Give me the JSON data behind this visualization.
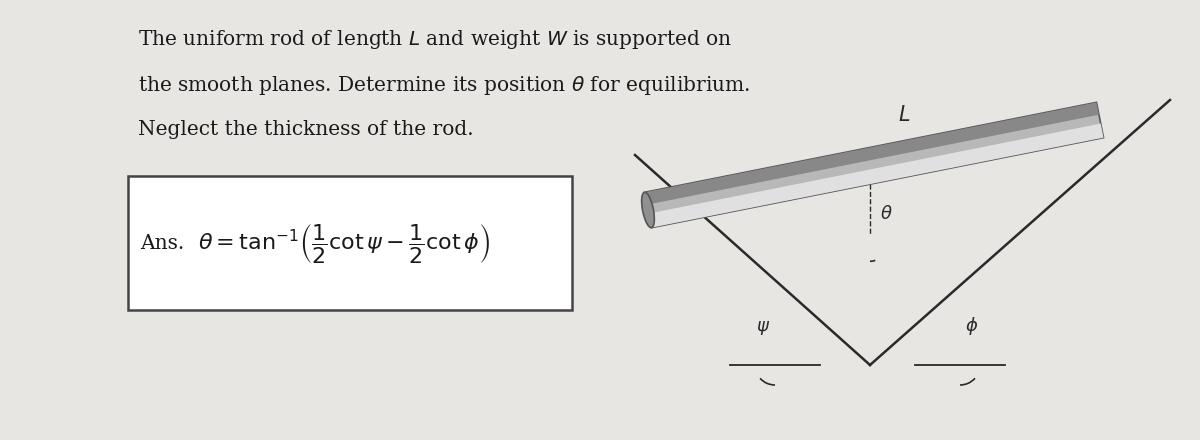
{
  "bg_color": "#d4d2ce",
  "page_color": "#e8e6e3",
  "text_color": "#1a1a1a",
  "line_color": "#2a2a2a",
  "problem_lines": [
    "The uniform rod of length $L$ and weight $W$ is supported on",
    "the smooth planes. Determine its position $\\theta$ for equilibrium.",
    "Neglect the thickness of the rod."
  ],
  "ans_label": "Ans.",
  "ans_formula": "$\\theta = \\tan^{-1}\\!\\left(\\dfrac{1}{2}\\cot\\psi - \\dfrac{1}{2}\\cot\\phi\\right)$",
  "rod_color_main": "#b8b8b8",
  "rod_color_light": "#e0e0e0",
  "rod_color_dark": "#888888",
  "rod_color_end": "#909090"
}
